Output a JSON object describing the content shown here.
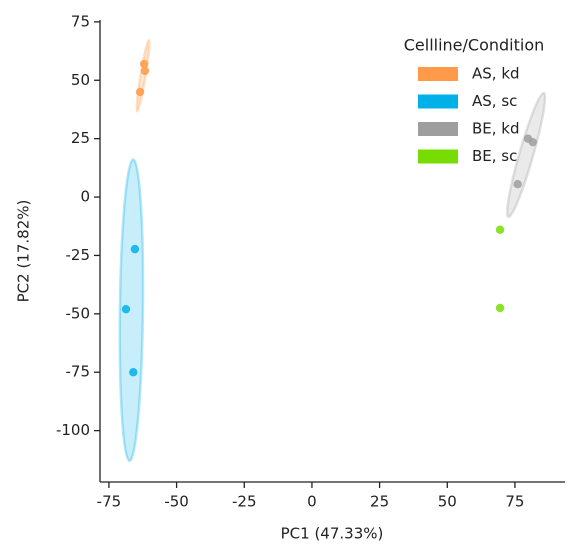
{
  "chart_data": {
    "type": "scatter",
    "xlabel": "PC1 (47.33%)",
    "ylabel": "PC2 (17.82%)",
    "legend_title": "Cellline/Condition",
    "legend": "upper right",
    "xlim": [
      -78.3,
      93.5
    ],
    "xticks": [
      -75,
      -50,
      -25,
      0,
      25,
      50,
      75
    ],
    "ylim": [
      -122,
      75.8
    ],
    "yticks": [
      -100,
      -75,
      -50,
      -25,
      0,
      25,
      50,
      75
    ],
    "series": [
      {
        "name": "AS, kd",
        "color": "#ff9a4a",
        "x": [
          -62,
          -61.7,
          -63.5
        ],
        "values": [
          57,
          54,
          45
        ]
      },
      {
        "name": "AS, sc",
        "color": "#00b0e8",
        "x": [
          -65.4,
          -68.7,
          -66
        ],
        "values": [
          -22.3,
          -48,
          -75
        ]
      },
      {
        "name": "BE, kd",
        "color": "#9e9e9e",
        "x": [
          79.8,
          81.6,
          76
        ],
        "values": [
          25,
          23.5,
          5.5
        ]
      },
      {
        "name": "BE, sc",
        "color": "#77dd00",
        "x": [
          69.5,
          69.5
        ],
        "values": [
          -14,
          -47.5
        ]
      }
    ]
  }
}
